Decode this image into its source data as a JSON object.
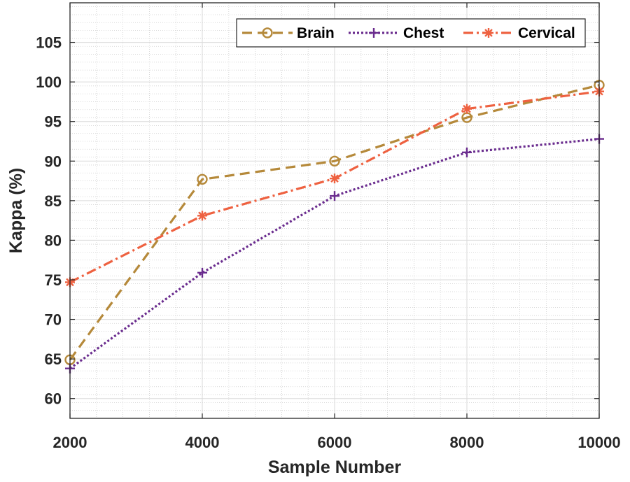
{
  "chart_data": {
    "type": "line",
    "title": "",
    "xlabel": "Sample Number",
    "ylabel": "Kappa (%)",
    "x": [
      2000,
      4000,
      6000,
      8000,
      10000
    ],
    "xlim": [
      2000,
      10000
    ],
    "ylim": [
      57.5,
      110
    ],
    "xticks": [
      2000,
      4000,
      6000,
      8000,
      10000
    ],
    "xtick_labels": [
      "2000",
      "4000",
      "6000",
      "8000",
      "10000"
    ],
    "yticks": [
      60,
      65,
      70,
      75,
      80,
      85,
      90,
      95,
      100,
      105
    ],
    "ytick_labels": [
      "60",
      "65",
      "70",
      "75",
      "80",
      "85",
      "90",
      "95",
      "100",
      "105"
    ],
    "grid": true,
    "minor_grid": true,
    "legend_position": "top-right",
    "series": [
      {
        "name": "Brain",
        "values": [
          64.9,
          87.7,
          90.0,
          95.5,
          99.6
        ],
        "color": "#b5893a",
        "line_style": "dashed",
        "marker": "circle"
      },
      {
        "name": "Chest",
        "values": [
          63.8,
          75.9,
          85.6,
          91.1,
          92.8
        ],
        "color": "#6a2c8e",
        "line_style": "dotted",
        "marker": "plus"
      },
      {
        "name": "Cervical",
        "values": [
          74.7,
          83.1,
          87.8,
          96.6,
          98.8
        ],
        "color": "#ee6140",
        "line_style": "dash-dot",
        "marker": "asterisk"
      }
    ]
  }
}
